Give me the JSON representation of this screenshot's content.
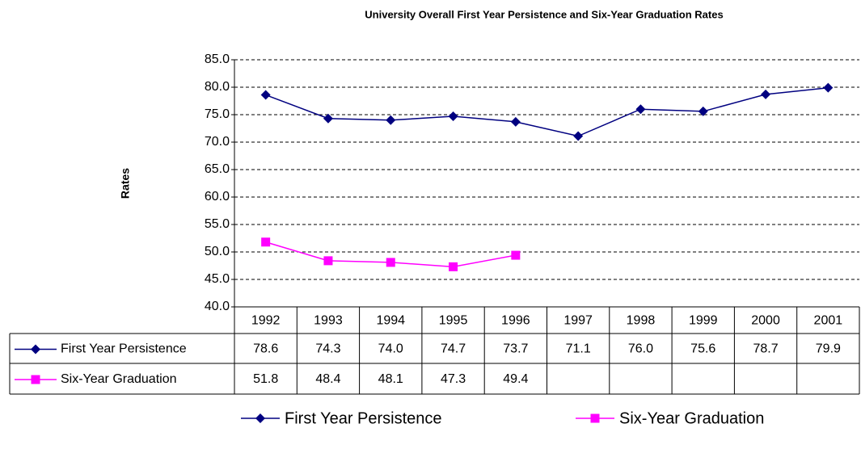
{
  "chart_data": {
    "type": "line",
    "title": "University Overall First Year Persistence and Six-Year Graduation Rates",
    "y_label": "Rates",
    "categories": [
      "1992",
      "1993",
      "1994",
      "1995",
      "1996",
      "1997",
      "1998",
      "1999",
      "2000",
      "2001"
    ],
    "series": [
      {
        "name": "First Year Persistence",
        "color": "#000080",
        "marker": "diamond",
        "values": [
          78.6,
          74.3,
          74.0,
          74.7,
          73.7,
          71.1,
          76.0,
          75.6,
          78.7,
          79.9
        ],
        "value_labels": [
          "78.6",
          "74.3",
          "74.0",
          "74.7",
          "73.7",
          "71.1",
          "76.0",
          "75.6",
          "78.7",
          "79.9"
        ]
      },
      {
        "name": "Six-Year Graduation",
        "color": "#ff00ff",
        "marker": "square",
        "values": [
          51.8,
          48.4,
          48.1,
          47.3,
          49.4,
          null,
          null,
          null,
          null,
          null
        ],
        "value_labels": [
          "51.8",
          "48.4",
          "48.1",
          "47.3",
          "49.4",
          null,
          null,
          null,
          null,
          null
        ]
      }
    ],
    "ylim": [
      40,
      85
    ],
    "yticks": [
      {
        "value": 40,
        "label": "40.0"
      },
      {
        "value": 45,
        "label": "45.0"
      },
      {
        "value": 50,
        "label": "50.0"
      },
      {
        "value": 55,
        "label": "55.0"
      },
      {
        "value": 60,
        "label": "60.0"
      },
      {
        "value": 65,
        "label": "65.0"
      },
      {
        "value": 70,
        "label": "70.0"
      },
      {
        "value": 75,
        "label": "75.0"
      },
      {
        "value": 80,
        "label": "80.0"
      },
      {
        "value": 85,
        "label": "85.0"
      }
    ],
    "grid": true,
    "legend": "bottom"
  }
}
